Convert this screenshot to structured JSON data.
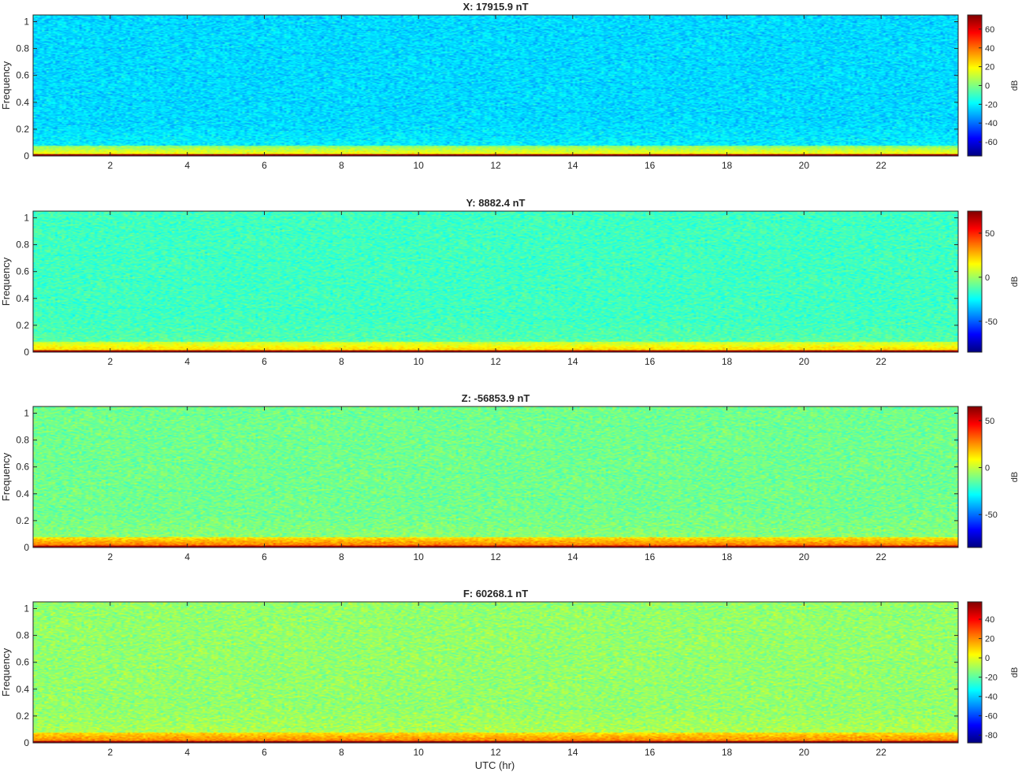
{
  "figure": {
    "xlabel": "UTC (hr)"
  },
  "chart_data": [
    {
      "type": "heatmap",
      "title": "X: 17915.9 nT",
      "ylabel": "Frequency",
      "xlim": [
        0,
        24
      ],
      "ylim": [
        0,
        1.05
      ],
      "xticks": [
        2,
        4,
        6,
        8,
        10,
        12,
        14,
        16,
        18,
        20,
        22
      ],
      "yticks": [
        0,
        0.2,
        0.4,
        0.6,
        0.8,
        1
      ],
      "colorbar": {
        "label": "dB",
        "min": -75,
        "max": 75,
        "ticks": [
          -60,
          -40,
          -20,
          0,
          20,
          40,
          60
        ]
      },
      "background_level_db": -24,
      "low_freq_band_db": 20,
      "dc_line_db": 72,
      "colormap": "jet"
    },
    {
      "type": "heatmap",
      "title": "Y: 8882.4 nT",
      "ylabel": "Frequency",
      "xlim": [
        0,
        24
      ],
      "ylim": [
        0,
        1.05
      ],
      "xticks": [
        2,
        4,
        6,
        8,
        10,
        12,
        14,
        16,
        18,
        20,
        22
      ],
      "yticks": [
        0,
        0.2,
        0.4,
        0.6,
        0.8,
        1
      ],
      "colorbar": {
        "label": "dB",
        "min": -85,
        "max": 75,
        "ticks": [
          -50,
          0,
          50
        ]
      },
      "background_level_db": -15,
      "low_freq_band_db": 22,
      "dc_line_db": 70,
      "colormap": "jet"
    },
    {
      "type": "heatmap",
      "title": "Z: -56853.9 nT",
      "ylabel": "Frequency",
      "xlim": [
        0,
        24
      ],
      "ylim": [
        0,
        1.05
      ],
      "xticks": [
        2,
        4,
        6,
        8,
        10,
        12,
        14,
        16,
        18,
        20,
        22
      ],
      "yticks": [
        0,
        0.2,
        0.4,
        0.6,
        0.8,
        1
      ],
      "colorbar": {
        "label": "dB",
        "min": -85,
        "max": 65,
        "ticks": [
          -50,
          0,
          50
        ]
      },
      "background_level_db": -12,
      "low_freq_band_db": 30,
      "dc_line_db": 60,
      "colormap": "jet"
    },
    {
      "type": "heatmap",
      "title": "F: 60268.1 nT",
      "ylabel": "Frequency",
      "xlim": [
        0,
        24
      ],
      "ylim": [
        0,
        1.05
      ],
      "xticks": [
        2,
        4,
        6,
        8,
        10,
        12,
        14,
        16,
        18,
        20,
        22
      ],
      "yticks": [
        0,
        0.2,
        0.4,
        0.6,
        0.8,
        1
      ],
      "colorbar": {
        "label": "dB",
        "min": -88,
        "max": 58,
        "ticks": [
          -80,
          -60,
          -40,
          -20,
          0,
          20,
          40
        ]
      },
      "background_level_db": -12,
      "low_freq_band_db": 22,
      "dc_line_db": 55,
      "colormap": "jet"
    }
  ]
}
